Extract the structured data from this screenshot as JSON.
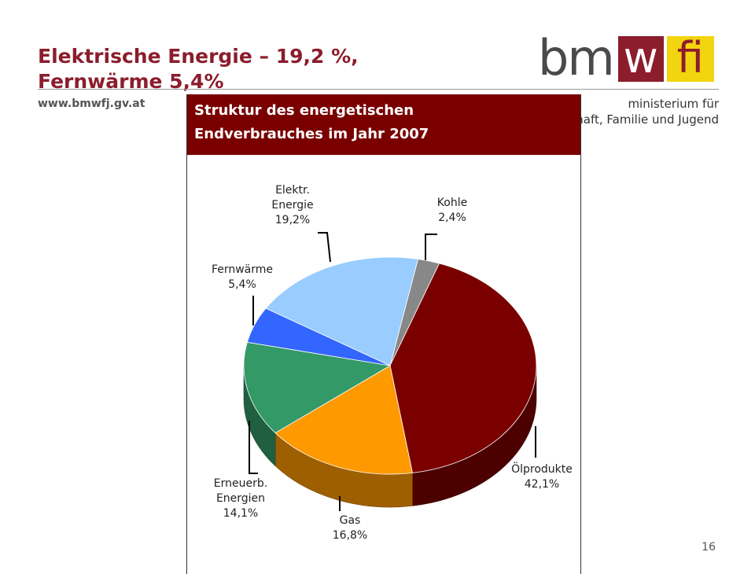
{
  "slide": {
    "title_line1": "Elektrische Energie – 19,2 %,",
    "title_line2": "Fernwärme 5,4%",
    "url": "www.bmwfj.gv.at",
    "page_number": "16"
  },
  "logo": {
    "text_bm": "bm",
    "text_w": "w",
    "text_fi": "fi",
    "ministry_line1": "ministerium für",
    "ministry_line2": "haft, Familie und Jugend"
  },
  "colors": {
    "brand_red": "#8b1d2c",
    "brand_yellow": "#f2d40f",
    "panel_header": "#7a0000"
  },
  "chart_data": {
    "type": "pie",
    "title_line1": "Struktur des energetischen",
    "title_line2": "Endverbrauches im Jahr 2007",
    "unit": "%",
    "slices": [
      {
        "name": "Kohle",
        "label_lines": [
          "Kohle",
          "2,4%"
        ],
        "value": 2.4,
        "color": "#888888"
      },
      {
        "name": "Ölprodukte",
        "label_lines": [
          "Ölprodukte",
          "42,1%"
        ],
        "value": 42.1,
        "color": "#7a0000"
      },
      {
        "name": "Gas",
        "label_lines": [
          "Gas",
          "16,8%"
        ],
        "value": 16.8,
        "color": "#ff9900"
      },
      {
        "name": "Erneuerb. Energien",
        "label_lines": [
          "Erneuerb.",
          "Energien",
          "14,1%"
        ],
        "value": 14.1,
        "color": "#339966"
      },
      {
        "name": "Fernwärme",
        "label_lines": [
          "Fernwärme",
          "5,4%"
        ],
        "value": 5.4,
        "color": "#3366ff"
      },
      {
        "name": "Elektr. Energie",
        "label_lines": [
          "Elektr.",
          "Energie",
          "19,2%"
        ],
        "value": 19.2,
        "color": "#99ccff"
      }
    ]
  }
}
